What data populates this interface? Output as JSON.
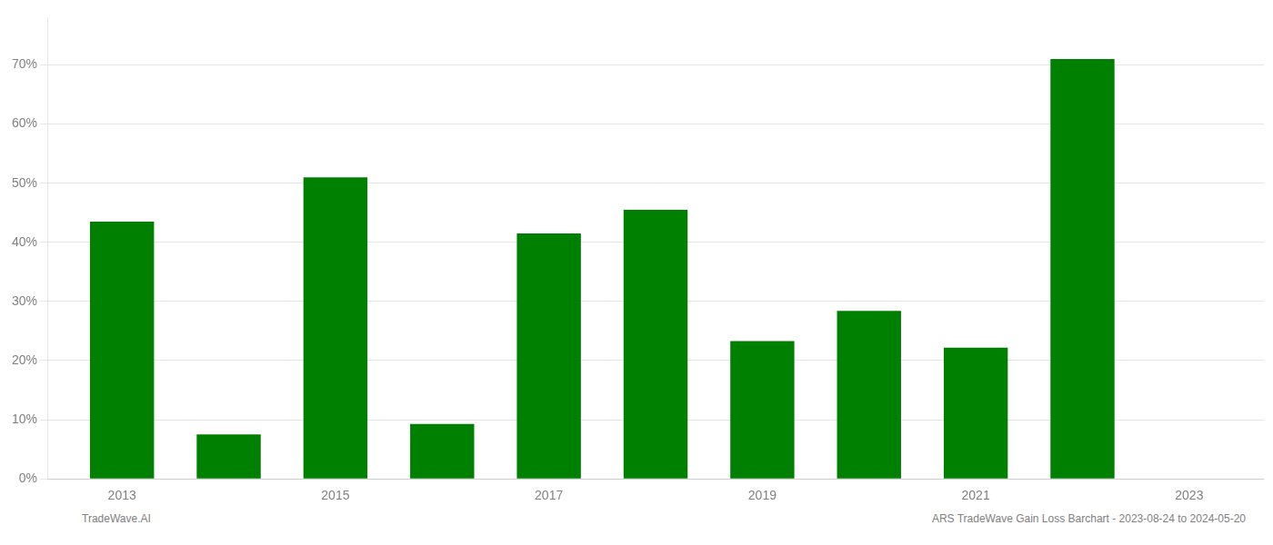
{
  "chart_data": {
    "type": "bar",
    "x": [
      2013,
      2014,
      2015,
      2016,
      2017,
      2018,
      2019,
      2020,
      2021,
      2022
    ],
    "values": [
      0.435,
      0.075,
      0.51,
      0.093,
      0.415,
      0.455,
      0.233,
      0.284,
      0.222,
      0.71
    ],
    "color": "#008000",
    "xlim": [
      2012.3,
      2023.7
    ],
    "xticks": [
      2013,
      2015,
      2017,
      2019,
      2021,
      2023
    ],
    "ylim": [
      0,
      0.78
    ],
    "yticks": [
      {
        "value": 0.0,
        "label": "0%"
      },
      {
        "value": 0.1,
        "label": "10%"
      },
      {
        "value": 0.2,
        "label": "20%"
      },
      {
        "value": 0.3,
        "label": "30%"
      },
      {
        "value": 0.4,
        "label": "40%"
      },
      {
        "value": 0.5,
        "label": "50%"
      },
      {
        "value": 0.6,
        "label": "60%"
      },
      {
        "value": 0.7,
        "label": "70%"
      }
    ],
    "grid": "y",
    "annotations": [
      "TradeWave.AI",
      "ARS TradeWave Gain Loss Barchart - 2023-08-24 to 2024-05-20"
    ]
  }
}
